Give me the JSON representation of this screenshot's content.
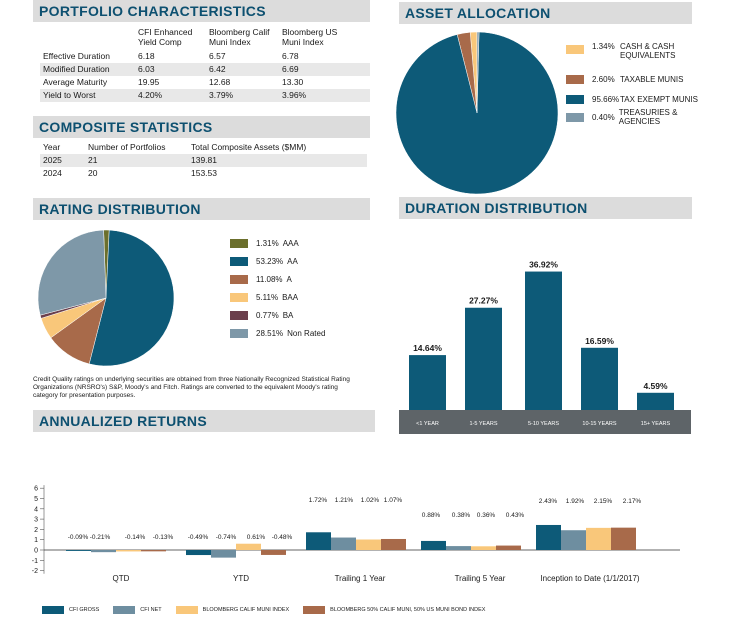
{
  "portfolio": {
    "title": "PORTFOLIO CHARACTERISTICS",
    "col1": [
      "CFI Enhanced",
      "Yield Comp"
    ],
    "col2": [
      "Bloomberg Calif",
      "Muni Index"
    ],
    "col3": [
      "Bloomberg US",
      "Muni Index"
    ],
    "rows": [
      {
        "label": "Effective Duration",
        "a": "6.18",
        "b": "6.57",
        "c": "6.78"
      },
      {
        "label": "Modified Duration",
        "a": "6.03",
        "b": "6.42",
        "c": "6.69"
      },
      {
        "label": "Average Maturity",
        "a": "19.95",
        "b": "12.68",
        "c": "13.30"
      },
      {
        "label": "Yield to Worst",
        "a": "4.20%",
        "b": "3.79%",
        "c": "3.96%"
      }
    ]
  },
  "composite": {
    "title": "COMPOSITE STATISTICS",
    "headers": [
      "Year",
      "Number of Portfolios",
      "Total Composite Assets ($MM)"
    ],
    "rows": [
      {
        "year": "2025",
        "n": "21",
        "assets": "139.81"
      },
      {
        "year": "2024",
        "n": "20",
        "assets": "153.53"
      }
    ]
  },
  "asset_allocation": {
    "title": "ASSET ALLOCATION"
  },
  "rating": {
    "title": "RATING DISTRIBUTION",
    "note": "Credit Quality ratings on underlying securities are obtained from three Nationally Recognized Statistical Rating Organizations (NRSRO's) S&P, Moody's and Fitch. Ratings are converted to the equivalent Moody's rating category for presentation purposes."
  },
  "duration": {
    "title": "DURATION DISTRIBUTION"
  },
  "returns": {
    "title": "ANNUALIZED RETURNS"
  },
  "colors": {
    "accent": "#0d5070",
    "cfi_gross": "#0d5a78",
    "cfi_net": "#6e8ea0",
    "calif": "#f9c77a",
    "blend": "#a86a4a",
    "aaa": "#6b6f2c",
    "a": "#a86a4a",
    "baa": "#f9c77a",
    "ba": "#6b3f4c",
    "nr": "#7e98a8",
    "treas": "#7e98a8"
  },
  "chart_data": [
    {
      "type": "pie",
      "labels": [
        "CASH & CASH EQUIVALENTS",
        "TAXABLE MUNIS",
        "TAX EXEMPT MUNIS",
        "TREASURIES & AGENCIES"
      ],
      "legend_lines": [
        [
          "1.34%",
          "CASH & CASH",
          "EQUIVALENTS"
        ],
        [
          "2.60%",
          "TAXABLE MUNIS"
        ],
        [
          "95.66%",
          "TAX EXEMPT MUNIS"
        ],
        [
          "0.40%",
          "TREASURIES & AGENCIES"
        ]
      ],
      "values": [
        1.34,
        2.6,
        95.66,
        0.4
      ],
      "colors": [
        "#f9c77a",
        "#a86a4a",
        "#0d5a78",
        "#7e98a8"
      ]
    },
    {
      "type": "pie",
      "labels": [
        "AAA",
        "AA",
        "A",
        "BAA",
        "BA",
        "Non Rated"
      ],
      "pcts": [
        "1.31%",
        "53.23%",
        "11.08%",
        "5.11%",
        "0.77%",
        "28.51%"
      ],
      "values": [
        1.31,
        53.23,
        11.08,
        5.11,
        0.77,
        28.51
      ],
      "colors": [
        "#6b6f2c",
        "#0d5a78",
        "#a86a4a",
        "#f9c77a",
        "#6b3f4c",
        "#7e98a8"
      ]
    },
    {
      "type": "bar",
      "categories": [
        "<1 YEAR",
        "1-5 YEARS",
        "5-10 YEARS",
        "10-15 YEARS",
        "15+ YEARS"
      ],
      "values": [
        14.64,
        27.27,
        36.92,
        16.59,
        4.59
      ],
      "labels": [
        "14.64%",
        "27.27%",
        "36.92%",
        "16.59%",
        "4.59%"
      ],
      "ylim": [
        0,
        40
      ]
    },
    {
      "type": "bar",
      "categories": [
        "QTD",
        "YTD",
        "Trailing 1 Year",
        "Trailing 5 Year",
        "Inception to Date (1/1/2017)"
      ],
      "series": [
        {
          "name": "CFI GROSS",
          "values": [
            -0.09,
            -0.49,
            1.72,
            0.88,
            2.43
          ],
          "labels": [
            "-0.09%",
            "-0.49%",
            "1.72%",
            "0.88%",
            "2.43%"
          ]
        },
        {
          "name": "CFI NET",
          "values": [
            -0.21,
            -0.74,
            1.21,
            0.38,
            1.92
          ],
          "labels": [
            "-0.21%",
            "-0.74%",
            "1.21%",
            "0.38%",
            "1.92%"
          ]
        },
        {
          "name": "BLOOMBERG CALIF MUNI INDEX",
          "values": [
            -0.14,
            0.61,
            1.02,
            0.36,
            2.15
          ],
          "labels": [
            "-0.14%",
            "0.61%",
            "1.02%",
            "0.36%",
            "2.15%"
          ]
        },
        {
          "name": "BLOOMBERG 50% CALIF MUNI, 50% US MUNI BOND INDEX",
          "values": [
            -0.13,
            -0.48,
            1.07,
            0.43,
            2.17
          ],
          "labels": [
            "-0.13%",
            "-0.48%",
            "1.07%",
            "0.43%",
            "2.17%"
          ]
        }
      ],
      "yticks": [
        "6",
        "5",
        "4",
        "3",
        "2",
        "1",
        "0",
        "-1",
        "-2"
      ],
      "ylim": [
        -2,
        6
      ]
    }
  ]
}
